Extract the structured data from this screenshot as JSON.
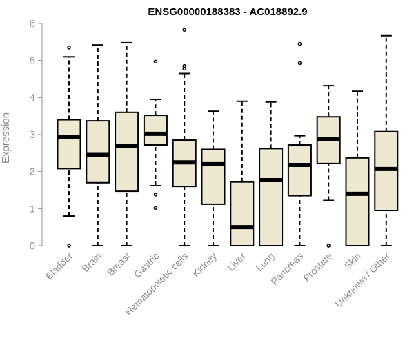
{
  "chart_data": {
    "type": "boxplot",
    "title": "ENSG00000188383 - AC018892.9",
    "ylabel": "Expression",
    "xlabel": "",
    "ylim": [
      0,
      6
    ],
    "yticks": [
      0,
      1,
      2,
      3,
      4,
      5,
      6
    ],
    "grid": false,
    "colors": {
      "box_fill": "#efe8d0",
      "box_stroke": "#000000",
      "axis": "#8c8c8c"
    },
    "categories": [
      "Bladder",
      "Brain",
      "Breast",
      "Gastric",
      "Hematopoietic cells",
      "Kidney",
      "Liver",
      "Lung",
      "Pancreas",
      "Prostate",
      "Skin",
      "Unknown / Other"
    ],
    "boxes": [
      {
        "min": 0.8,
        "q1": 2.08,
        "median": 2.93,
        "q3": 3.4,
        "max": 5.1,
        "outliers": [
          5.35,
          0.0
        ]
      },
      {
        "min": 0.0,
        "q1": 1.7,
        "median": 2.45,
        "q3": 3.37,
        "max": 5.42,
        "outliers": []
      },
      {
        "min": 0.0,
        "q1": 1.47,
        "median": 2.7,
        "q3": 3.6,
        "max": 5.48,
        "outliers": []
      },
      {
        "min": 1.62,
        "q1": 2.72,
        "median": 3.02,
        "q3": 3.52,
        "max": 3.95,
        "outliers": [
          4.97,
          1.38,
          1.02
        ]
      },
      {
        "min": 0.0,
        "q1": 1.6,
        "median": 2.25,
        "q3": 2.85,
        "max": 4.65,
        "outliers": [
          5.83,
          4.85,
          4.78
        ]
      },
      {
        "min": 0.0,
        "q1": 1.12,
        "median": 2.2,
        "q3": 2.6,
        "max": 3.63,
        "outliers": []
      },
      {
        "min": 0.0,
        "q1": 0.0,
        "median": 0.5,
        "q3": 1.72,
        "max": 3.9,
        "outliers": []
      },
      {
        "min": 0.0,
        "q1": 0.0,
        "median": 1.77,
        "q3": 2.62,
        "max": 3.88,
        "outliers": []
      },
      {
        "min": 0.0,
        "q1": 1.35,
        "median": 2.18,
        "q3": 2.72,
        "max": 2.97,
        "outliers": [
          5.45,
          4.93
        ]
      },
      {
        "min": 1.22,
        "q1": 2.22,
        "median": 2.88,
        "q3": 3.48,
        "max": 4.32,
        "outliers": [
          0.0
        ]
      },
      {
        "min": 0.0,
        "q1": 0.0,
        "median": 1.4,
        "q3": 2.37,
        "max": 4.17,
        "outliers": []
      },
      {
        "min": 0.0,
        "q1": 0.95,
        "median": 2.07,
        "q3": 3.08,
        "max": 5.67,
        "outliers": []
      }
    ]
  }
}
